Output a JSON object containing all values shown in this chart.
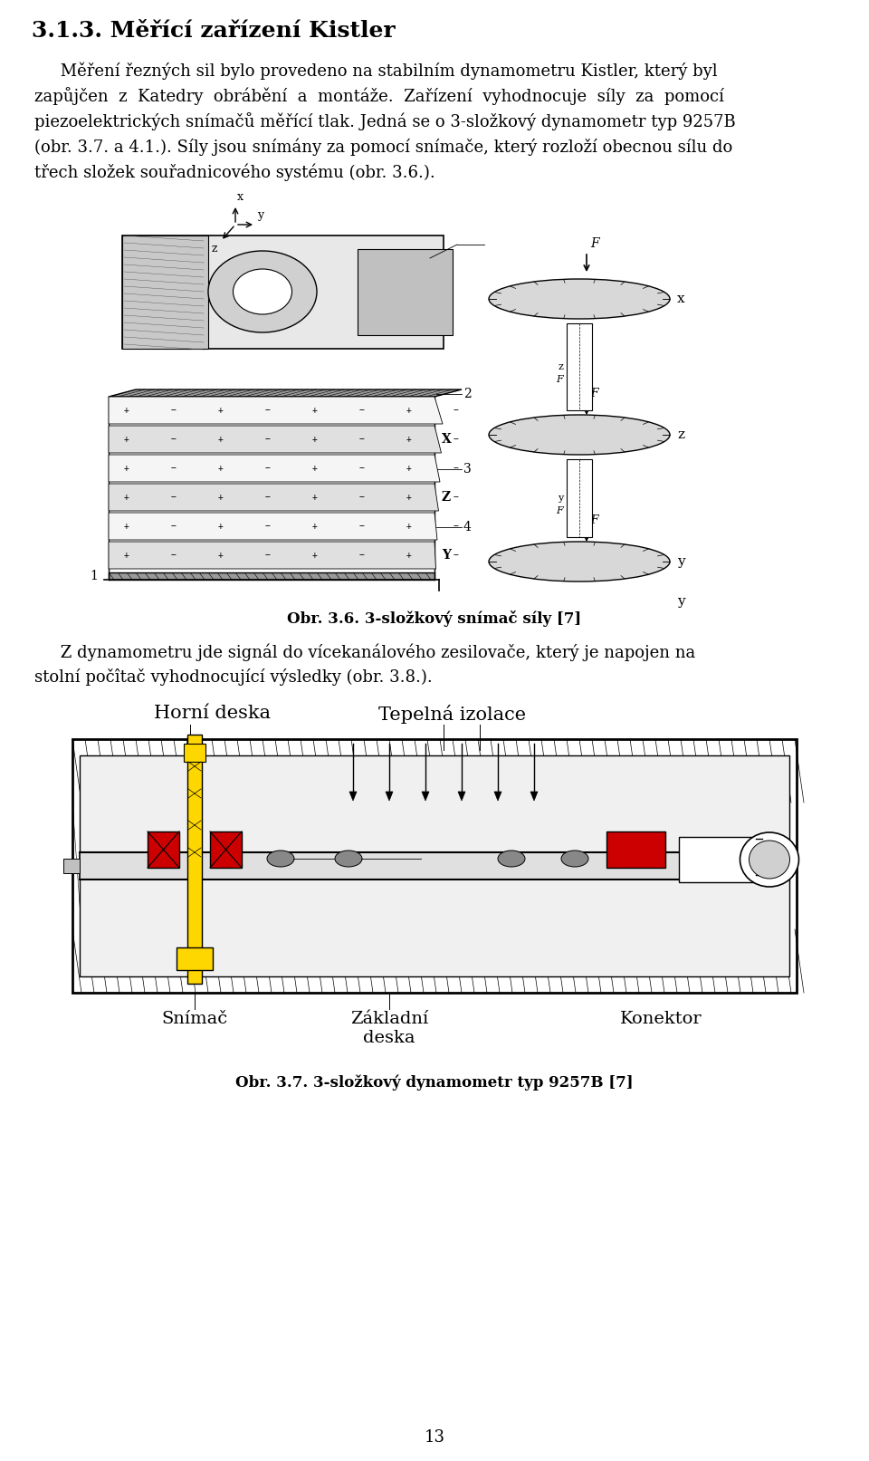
{
  "title_display": "3.1.3. Měřící zařízení Kistler",
  "lines_p1": [
    "     Měření řezných sil bylo provedeno na stabilním dynamometru Kistler, který byl",
    "zapůjčen  z  Katedry  obrábění  a  montáže.  Zařízení  vyhodnocuje  síly  za  pomocí",
    "piezoelektrických snímačů měřící tlak. Jedná se o 3-složkový dynamometr typ 9257B",
    "(obr. 3.7. a 4.1.). Síly jsou snímány za pomocí snímače, který rozloží obecnou sílu do",
    "třech složek souřadnicového systému (obr. 3.6.)."
  ],
  "caption1": "Obr. 3.6. 3-složkový snímač síly [7]",
  "lines_p2": [
    "     Z dynamometru jde signál do vícekanálového zesilovače, který je napojen na",
    "stolní počîtač vyhodnocující výsledky (obr. 3.8.)."
  ],
  "label_horni": "Horní deska",
  "label_tepelna": "Tepelná izolace",
  "label_snimac": "Snímač",
  "label_zakladni": "Základní\ndeska",
  "label_konektor": "Konektor",
  "caption2": "Obr. 3.7. 3-složkový dynamometr typ 9257B [7]",
  "caption2_normal": "Obr. 3.7. 3-složkový dynamometr typ 9257",
  "caption2_bold": "B",
  "caption2_end": " [7]",
  "page_number": "13",
  "bg_color": "#ffffff",
  "text_color": "#000000",
  "yellow": "#FFD700",
  "red": "#CC0000",
  "gray_hatch": "#888888",
  "gray_light": "#d0d0d0",
  "gray_mid": "#b0b0b0"
}
